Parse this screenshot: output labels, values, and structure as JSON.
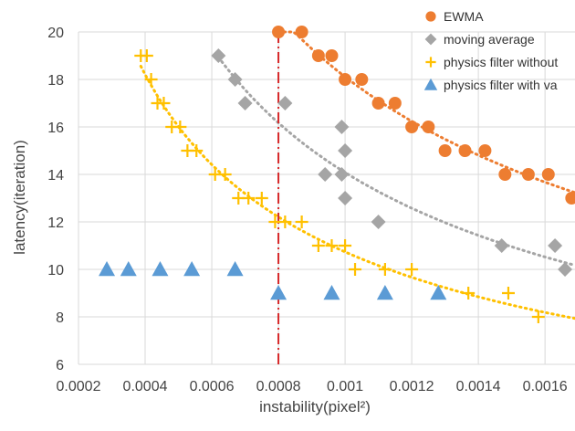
{
  "chart_data": {
    "type": "scatter",
    "xlabel": "instability(pixel²)",
    "ylabel": "latency(iteration)",
    "xlim": [
      0.0002,
      0.00169
    ],
    "ylim": [
      6,
      20
    ],
    "xticks": [
      "0.0002",
      "0.0004",
      "0.0006",
      "0.0008",
      "0.001",
      "0.0012",
      "0.0014",
      "0.0016"
    ],
    "yticks": [
      "6",
      "8",
      "10",
      "12",
      "14",
      "16",
      "18",
      "20"
    ],
    "grid": true,
    "legend_position": "top-right",
    "vertical_reference_line": {
      "x": 0.0008,
      "color": "#d62728",
      "style": "dash-dot"
    },
    "series": [
      {
        "name": "EWMA",
        "marker": "circle",
        "color": "#ed7d31",
        "trendline": "dotted",
        "points": [
          [
            0.0008,
            20
          ],
          [
            0.00087,
            20
          ],
          [
            0.00092,
            19
          ],
          [
            0.00096,
            19
          ],
          [
            0.001,
            18
          ],
          [
            0.00105,
            18
          ],
          [
            0.0011,
            17
          ],
          [
            0.00115,
            17
          ],
          [
            0.0012,
            16
          ],
          [
            0.00125,
            16
          ],
          [
            0.0013,
            15
          ],
          [
            0.00136,
            15
          ],
          [
            0.00142,
            15
          ],
          [
            0.00148,
            14
          ],
          [
            0.00155,
            14
          ],
          [
            0.00161,
            14
          ],
          [
            0.00168,
            13
          ]
        ]
      },
      {
        "name": "moving average",
        "marker": "diamond",
        "color": "#a5a5a5",
        "trendline": "dotted",
        "points": [
          [
            0.00062,
            19
          ],
          [
            0.00067,
            18
          ],
          [
            0.0007,
            17
          ],
          [
            0.00082,
            17
          ],
          [
            0.00099,
            16
          ],
          [
            0.001,
            15
          ],
          [
            0.00094,
            14
          ],
          [
            0.00099,
            14
          ],
          [
            0.001,
            13
          ],
          [
            0.0011,
            12
          ],
          [
            0.00147,
            11
          ],
          [
            0.00163,
            11
          ],
          [
            0.00166,
            10
          ]
        ]
      },
      {
        "name": "physics filter without",
        "marker": "plus",
        "color": "#ffc000",
        "trendline": "dotted",
        "points": [
          [
            0.000387,
            19
          ],
          [
            0.000405,
            19
          ],
          [
            0.000418,
            18
          ],
          [
            0.000437,
            17
          ],
          [
            0.000456,
            17
          ],
          [
            0.00048,
            16
          ],
          [
            0.000505,
            16
          ],
          [
            0.000527,
            15
          ],
          [
            0.000554,
            15
          ],
          [
            0.00061,
            14
          ],
          [
            0.00064,
            14
          ],
          [
            0.00068,
            13
          ],
          [
            0.00071,
            13
          ],
          [
            0.00075,
            13
          ],
          [
            0.00079,
            12
          ],
          [
            0.00082,
            12
          ],
          [
            0.00087,
            12
          ],
          [
            0.00092,
            11
          ],
          [
            0.00096,
            11
          ],
          [
            0.001,
            11
          ],
          [
            0.00103,
            10
          ],
          [
            0.00112,
            10
          ],
          [
            0.0012,
            10
          ],
          [
            0.00137,
            9
          ],
          [
            0.00149,
            9
          ],
          [
            0.00158,
            8
          ]
        ]
      },
      {
        "name": "physics filter with va",
        "marker": "triangle",
        "color": "#5b9bd5",
        "points": [
          [
            0.000285,
            10
          ],
          [
            0.00035,
            10
          ],
          [
            0.000445,
            10
          ],
          [
            0.00054,
            10
          ],
          [
            0.00067,
            10
          ],
          [
            0.0008,
            9
          ],
          [
            0.00096,
            9
          ],
          [
            0.00112,
            9
          ],
          [
            0.00128,
            9
          ]
        ]
      }
    ]
  }
}
